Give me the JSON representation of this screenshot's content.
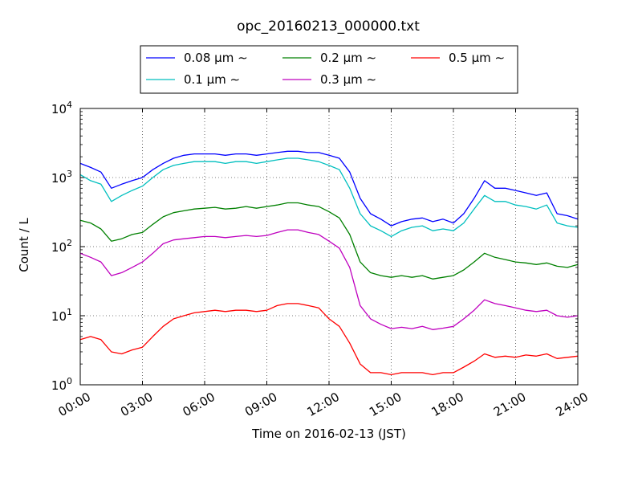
{
  "chart_data": {
    "type": "line",
    "title": "opc_20160213_000000.txt",
    "xlabel": "Time on 2016-02-13 (JST)",
    "ylabel": "Count / L",
    "x_unit": "hours",
    "xlim": [
      0,
      24
    ],
    "ylim": [
      1,
      10000
    ],
    "y_scale": "log",
    "grid": true,
    "legend_position": "top-center, above plot",
    "x_ticks": [
      0,
      3,
      6,
      9,
      12,
      15,
      18,
      21,
      24
    ],
    "x_tick_labels": [
      "00:00",
      "03:00",
      "06:00",
      "09:00",
      "12:00",
      "15:00",
      "18:00",
      "21:00",
      "24:00"
    ],
    "y_ticks": [
      1,
      10,
      100,
      1000,
      10000
    ],
    "y_tick_labels": [
      {
        "base": "10",
        "exp": "0"
      },
      {
        "base": "10",
        "exp": "1"
      },
      {
        "base": "10",
        "exp": "2"
      },
      {
        "base": "10",
        "exp": "3"
      },
      {
        "base": "10",
        "exp": "4"
      }
    ],
    "x": [
      0,
      0.5,
      1,
      1.5,
      2,
      2.5,
      3,
      3.5,
      4,
      4.5,
      5,
      5.5,
      6,
      6.5,
      7,
      7.5,
      8,
      8.5,
      9,
      9.5,
      10,
      10.5,
      11,
      11.5,
      12,
      12.5,
      13,
      13.5,
      14,
      14.5,
      15,
      15.5,
      16,
      16.5,
      17,
      17.5,
      18,
      18.5,
      19,
      19.5,
      20,
      20.5,
      21,
      21.5,
      22,
      22.5,
      23,
      23.5,
      24
    ],
    "series": [
      {
        "name": "0.08 μm ∼",
        "color": "#0000ff",
        "values": [
          1600,
          1400,
          1200,
          700,
          800,
          900,
          1000,
          1300,
          1600,
          1900,
          2100,
          2200,
          2200,
          2200,
          2100,
          2200,
          2200,
          2100,
          2200,
          2300,
          2400,
          2400,
          2300,
          2300,
          2100,
          1900,
          1200,
          500,
          300,
          250,
          200,
          230,
          250,
          260,
          230,
          250,
          220,
          300,
          500,
          900,
          700,
          700,
          650,
          600,
          550,
          600,
          300,
          280,
          250
        ]
      },
      {
        "name": "0.1 μm ∼",
        "color": "#00bfbf",
        "values": [
          1100,
          900,
          800,
          450,
          550,
          650,
          750,
          1000,
          1300,
          1500,
          1600,
          1700,
          1700,
          1700,
          1600,
          1700,
          1700,
          1600,
          1700,
          1800,
          1900,
          1900,
          1800,
          1700,
          1500,
          1300,
          700,
          300,
          200,
          170,
          140,
          170,
          190,
          200,
          170,
          180,
          170,
          220,
          350,
          550,
          450,
          450,
          400,
          380,
          350,
          400,
          220,
          200,
          190
        ]
      },
      {
        "name": "0.2 μm ∼",
        "color": "#008000",
        "values": [
          240,
          220,
          180,
          120,
          130,
          150,
          160,
          210,
          270,
          310,
          330,
          350,
          360,
          370,
          350,
          360,
          380,
          360,
          380,
          400,
          430,
          430,
          400,
          380,
          320,
          260,
          150,
          60,
          42,
          38,
          36,
          38,
          36,
          38,
          34,
          36,
          38,
          46,
          60,
          80,
          70,
          65,
          60,
          58,
          55,
          58,
          52,
          50,
          55
        ]
      },
      {
        "name": "0.3 μm ∼",
        "color": "#bf00bf",
        "values": [
          80,
          70,
          60,
          38,
          42,
          50,
          60,
          80,
          110,
          125,
          130,
          135,
          140,
          140,
          135,
          140,
          145,
          140,
          145,
          160,
          175,
          175,
          160,
          150,
          120,
          95,
          50,
          14,
          9,
          7.5,
          6.5,
          6.8,
          6.5,
          7,
          6.3,
          6.6,
          7,
          9,
          12,
          17,
          15,
          14,
          13,
          12,
          11.5,
          12,
          10,
          9.5,
          10
        ]
      },
      {
        "name": "0.5 μm ∼",
        "color": "#ff0000",
        "values": [
          4.5,
          5,
          4.5,
          3,
          2.8,
          3.2,
          3.5,
          5,
          7,
          9,
          10,
          11,
          11.5,
          12,
          11.5,
          12,
          12,
          11.5,
          12,
          14,
          15,
          15,
          14,
          13,
          9,
          7,
          4,
          2,
          1.5,
          1.5,
          1.4,
          1.5,
          1.5,
          1.5,
          1.4,
          1.5,
          1.5,
          1.8,
          2.2,
          2.8,
          2.5,
          2.6,
          2.5,
          2.7,
          2.6,
          2.8,
          2.4,
          2.5,
          2.6
        ]
      }
    ]
  }
}
